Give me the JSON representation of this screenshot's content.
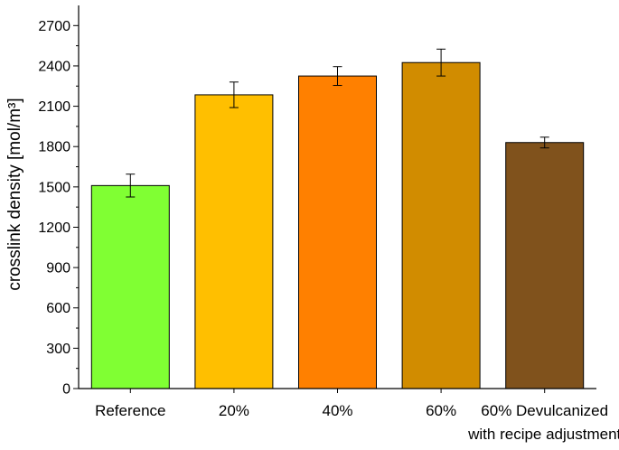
{
  "chart_data": {
    "type": "bar",
    "title": "",
    "xlabel": "",
    "ylabel": "crosslink density [mol/m³]",
    "ylim": [
      0,
      2850
    ],
    "yticks": [
      0,
      300,
      600,
      900,
      1200,
      1500,
      1800,
      2100,
      2400,
      2700
    ],
    "grid": false,
    "categories": [
      [
        "Reference"
      ],
      [
        "20%"
      ],
      [
        "40%"
      ],
      [
        "60%"
      ],
      [
        "60% Devulcanized",
        "with recipe adjustment"
      ]
    ],
    "values": [
      1510,
      2185,
      2325,
      2425,
      1830
    ],
    "errors": [
      85,
      95,
      70,
      100,
      40
    ],
    "colors": [
      "#80ff33",
      "#ffbf00",
      "#ff8000",
      "#d18c00",
      "#80521c"
    ]
  }
}
